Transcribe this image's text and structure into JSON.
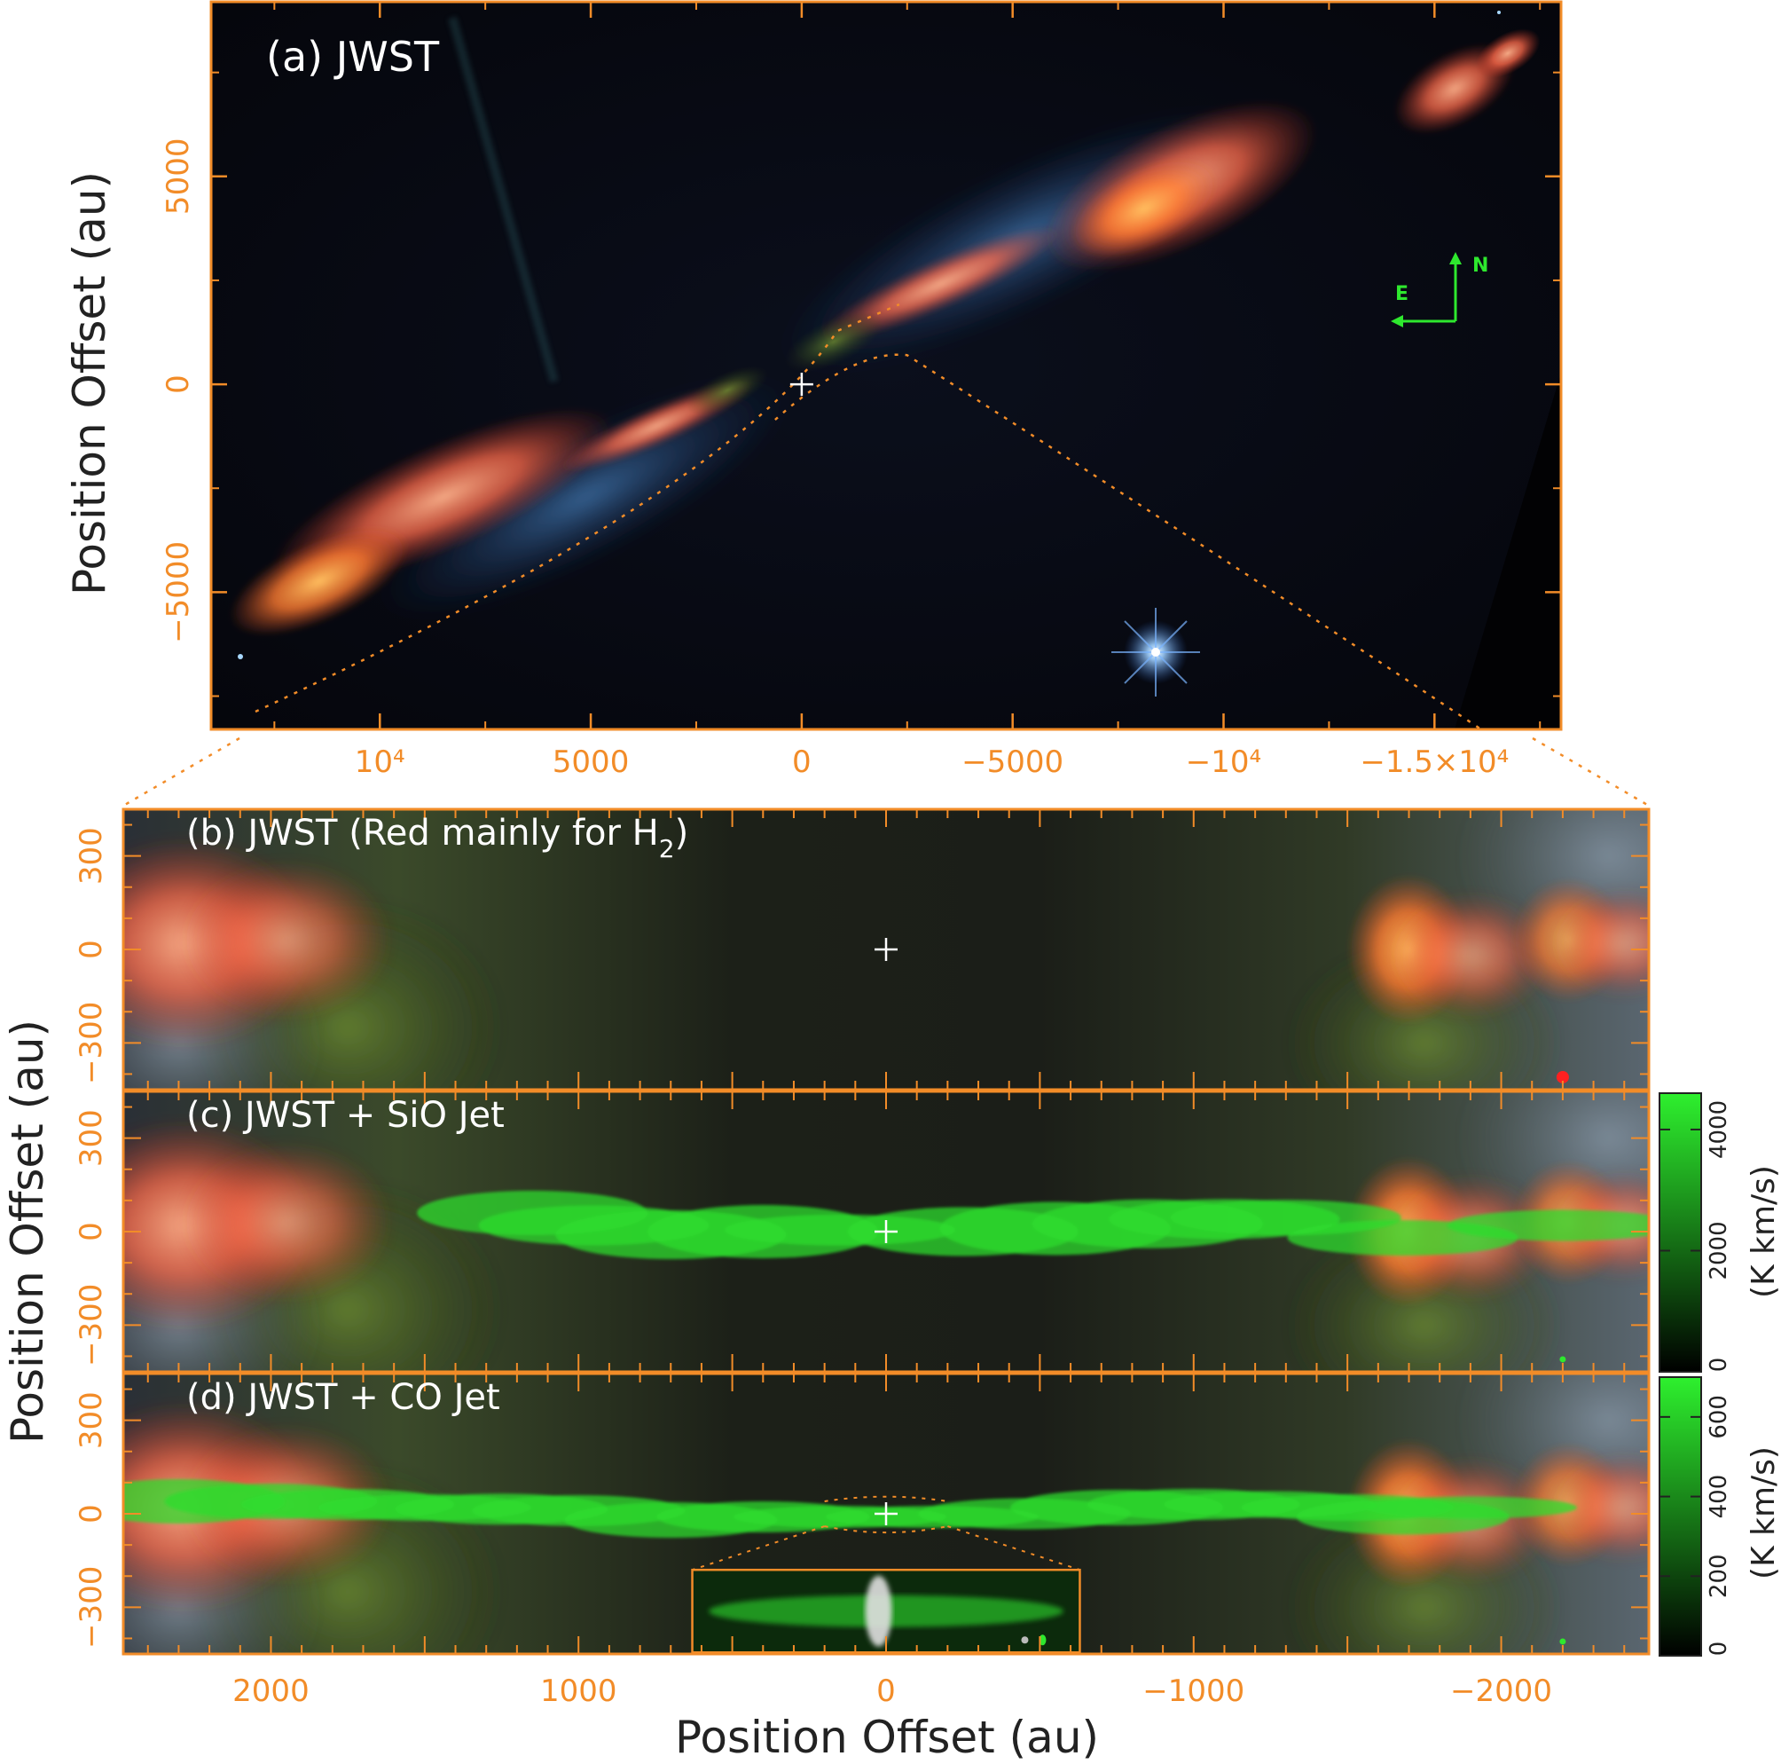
{
  "colors": {
    "axis": "#f28c28",
    "label": "#222222",
    "panel_text": "#ffffff",
    "compass": "#2ee82e",
    "colorbar_green": "#2ee82e"
  },
  "panel_a": {
    "label": "(a) JWST",
    "ylabel": "Position Offset (au)",
    "x_ticks": [
      {
        "v": 10000,
        "t": "10⁴"
      },
      {
        "v": 5000,
        "t": "5000"
      },
      {
        "v": 0,
        "t": "0"
      },
      {
        "v": -5000,
        "t": "−5000"
      },
      {
        "v": -10000,
        "t": "−10⁴"
      },
      {
        "v": -15000,
        "t": "−1.5×10⁴"
      }
    ],
    "y_ticks": [
      {
        "v": 5000,
        "t": "5000"
      },
      {
        "v": 0,
        "t": "0"
      },
      {
        "v": -5000,
        "t": "−5000"
      }
    ],
    "xlim": [
      14000,
      -18000
    ],
    "ylim": [
      -8300,
      9200
    ],
    "compass": {
      "north": "N",
      "east": "E"
    }
  },
  "lower": {
    "xlabel": "Position Offset (au)",
    "ylabel": "Position Offset (au)",
    "xlim": [
      2480,
      -2480
    ],
    "ylim": [
      -450,
      450
    ],
    "x_ticks": [
      {
        "v": 2000,
        "t": "2000"
      },
      {
        "v": 1000,
        "t": "1000"
      },
      {
        "v": 0,
        "t": "0"
      },
      {
        "v": -1000,
        "t": "−1000"
      },
      {
        "v": -2000,
        "t": "−2000"
      }
    ],
    "y_ticks": [
      {
        "v": 300,
        "t": "300"
      },
      {
        "v": 0,
        "t": "0"
      },
      {
        "v": -300,
        "t": "−300"
      }
    ],
    "panels": [
      {
        "id": "b",
        "label_main": "(b) JWST (Red mainly for H",
        "label_sub": "2",
        "label_end": ")"
      },
      {
        "id": "c",
        "label_main": "(c) JWST + SiO Jet",
        "label_sub": "",
        "label_end": ""
      },
      {
        "id": "d",
        "label_main": "(d) JWST + CO Jet",
        "label_sub": "",
        "label_end": ""
      }
    ]
  },
  "colorbar_sio": {
    "unit": "(K km/s)",
    "ticks": [
      {
        "v": 0,
        "t": "0"
      },
      {
        "v": 2000,
        "t": "2000"
      },
      {
        "v": 4000,
        "t": "4000"
      }
    ],
    "range": [
      0,
      4600
    ]
  },
  "colorbar_co": {
    "unit": "(K km/s)",
    "ticks": [
      {
        "v": 0,
        "t": "0"
      },
      {
        "v": 200,
        "t": "200"
      },
      {
        "v": 400,
        "t": "400"
      },
      {
        "v": 600,
        "t": "600"
      }
    ],
    "range": [
      0,
      700
    ]
  }
}
